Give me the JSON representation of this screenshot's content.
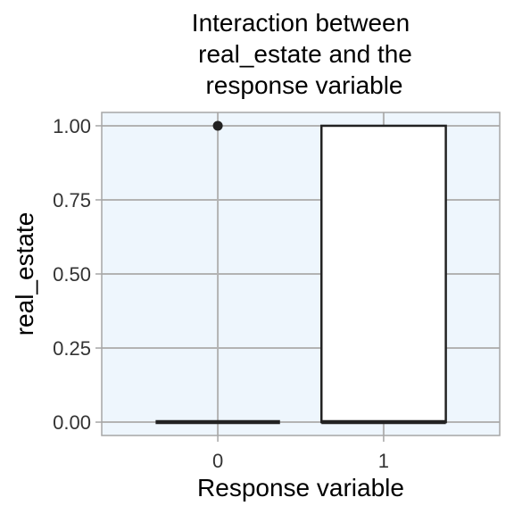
{
  "chart_data": {
    "type": "boxplot",
    "title_lines": [
      "Interaction between",
      "real_estate and the",
      "response variable"
    ],
    "xlabel": "Response variable",
    "ylabel": "real_estate",
    "categories": [
      "0",
      "1"
    ],
    "ylim": [
      -0.045,
      1.045
    ],
    "y_ticks": [
      0,
      0.25,
      0.5,
      0.75,
      1
    ],
    "y_tick_labels": [
      "0.00",
      "0.25",
      "0.50",
      "0.75",
      "1.00"
    ],
    "boxes": [
      {
        "category": "0",
        "q1": 0,
        "median": 0,
        "q3": 0,
        "whisker_low": 0,
        "whisker_high": 0,
        "outliers": [
          1
        ]
      },
      {
        "category": "1",
        "q1": 0,
        "median": 0,
        "q3": 1,
        "whisker_low": 0,
        "whisker_high": 1,
        "outliers": []
      }
    ],
    "grid": true,
    "legend": "none",
    "colors": {
      "panel_background": "#eef6fd",
      "panel_border": "#a6a6a6",
      "grid": "#b3b3b3",
      "box_fill": "#ffffff",
      "box_line": "#222222",
      "outlier": "#222222"
    }
  }
}
